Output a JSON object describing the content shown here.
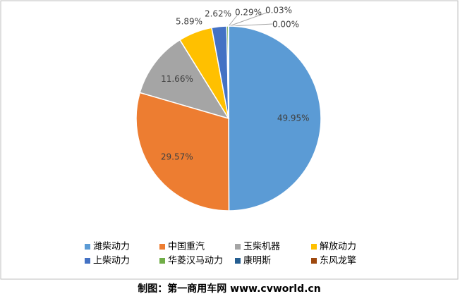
{
  "chart_data": {
    "type": "pie",
    "categories": [
      "潍柴动力",
      "中国重汽",
      "玉柴机器",
      "解放动力",
      "上柴动力",
      "华菱汉马动力",
      "康明斯",
      "东风龙擎"
    ],
    "values": [
      49.95,
      29.57,
      11.66,
      5.89,
      2.62,
      0.29,
      0.03,
      0.0
    ],
    "value_labels": [
      "49.95%",
      "29.57%",
      "11.66%",
      "5.89%",
      "2.62%",
      "0.29%",
      "0.03%",
      "0.00%"
    ],
    "colors": [
      "#5b9bd5",
      "#ed7d31",
      "#a5a5a5",
      "#ffc000",
      "#4472c4",
      "#70ad47",
      "#255e91",
      "#9e480e"
    ],
    "legend": "bottom",
    "source": "制图：第一商用车网 www.cvworld.cn"
  }
}
